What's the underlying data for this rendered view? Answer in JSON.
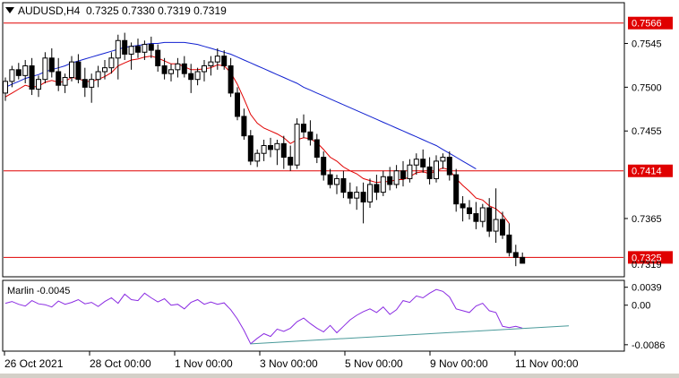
{
  "header": {
    "symbol_timeframe": "AUDUSD,H4",
    "ohlc": "0.7325 0.7330 0.7319 0.7319"
  },
  "colors": {
    "background": "#ffffff",
    "frame": "#000000",
    "bull_candle": "#ffffff",
    "bear_candle": "#000000",
    "ma_fast": "#e00000",
    "ma_slow": "#1020d0",
    "level_line": "#e00000",
    "level_label_bg": "#e00000",
    "oscillator": "#8a2be2",
    "trendline": "#4a9a9a"
  },
  "chart_data": [
    {
      "type": "candlestick",
      "title": "AUDUSD,H4",
      "y_ticks": [
        "0.7545",
        "0.7500",
        "0.7455",
        "0.7365"
      ],
      "ylim": [
        0.7306,
        0.7586
      ],
      "x_ticks": [
        "26 Oct 2021",
        "28 Oct 00:00",
        "1 Nov 00:00",
        "3 Nov 00:00",
        "5 Nov 00:00",
        "9 Nov 00:00",
        "11 Nov 00:00"
      ],
      "levels": [
        {
          "value": 0.7566,
          "label": "0.7566"
        },
        {
          "value": 0.7414,
          "label": "0.7414"
        },
        {
          "value": 0.7325,
          "label": "0.7325"
        }
      ],
      "current_price_label": "0.7319",
      "candles": [
        [
          0.7494,
          0.751,
          0.7486,
          0.7506
        ],
        [
          0.7506,
          0.7522,
          0.75,
          0.7518
        ],
        [
          0.7518,
          0.7525,
          0.7508,
          0.7512
        ],
        [
          0.7512,
          0.7528,
          0.7504,
          0.7522
        ],
        [
          0.7522,
          0.753,
          0.7492,
          0.7498
        ],
        [
          0.7498,
          0.7512,
          0.749,
          0.7508
        ],
        [
          0.7508,
          0.7536,
          0.7504,
          0.753
        ],
        [
          0.753,
          0.754,
          0.751,
          0.7516
        ],
        [
          0.7516,
          0.753,
          0.7496,
          0.7502
        ],
        [
          0.7502,
          0.7514,
          0.7494,
          0.751
        ],
        [
          0.751,
          0.7532,
          0.7506,
          0.7526
        ],
        [
          0.7526,
          0.7534,
          0.7504,
          0.7508
        ],
        [
          0.7508,
          0.752,
          0.749,
          0.75
        ],
        [
          0.75,
          0.7514,
          0.7484,
          0.7508
        ],
        [
          0.7508,
          0.7522,
          0.75,
          0.7516
        ],
        [
          0.7516,
          0.7528,
          0.7508,
          0.752
        ],
        [
          0.752,
          0.7536,
          0.7514,
          0.753
        ],
        [
          0.753,
          0.7554,
          0.7508,
          0.7548
        ],
        [
          0.7548,
          0.7556,
          0.7528,
          0.7534
        ],
        [
          0.7534,
          0.7546,
          0.7518,
          0.7542
        ],
        [
          0.7542,
          0.755,
          0.753,
          0.7536
        ],
        [
          0.7536,
          0.7548,
          0.7528,
          0.7544
        ],
        [
          0.7544,
          0.7552,
          0.753,
          0.7538
        ],
        [
          0.7538,
          0.7544,
          0.7516,
          0.7522
        ],
        [
          0.7522,
          0.753,
          0.7508,
          0.7514
        ],
        [
          0.7514,
          0.7524,
          0.7506,
          0.7518
        ],
        [
          0.7518,
          0.753,
          0.751,
          0.7524
        ],
        [
          0.7524,
          0.7532,
          0.751,
          0.7514
        ],
        [
          0.7514,
          0.7524,
          0.7494,
          0.7508
        ],
        [
          0.7508,
          0.752,
          0.7502,
          0.7516
        ],
        [
          0.7516,
          0.7528,
          0.7506,
          0.7522
        ],
        [
          0.7522,
          0.7532,
          0.7512,
          0.7526
        ],
        [
          0.7526,
          0.754,
          0.7518,
          0.7532
        ],
        [
          0.7532,
          0.7538,
          0.7518,
          0.7522
        ],
        [
          0.7522,
          0.753,
          0.749,
          0.7494
        ],
        [
          0.7494,
          0.75,
          0.7466,
          0.747
        ],
        [
          0.747,
          0.7478,
          0.7446,
          0.745
        ],
        [
          0.745,
          0.7456,
          0.742,
          0.7424
        ],
        [
          0.7424,
          0.7436,
          0.7418,
          0.7432
        ],
        [
          0.7432,
          0.7446,
          0.7424,
          0.744
        ],
        [
          0.744,
          0.7448,
          0.7428,
          0.7436
        ],
        [
          0.7436,
          0.7446,
          0.742,
          0.7442
        ],
        [
          0.7442,
          0.745,
          0.7416,
          0.7428
        ],
        [
          0.7428,
          0.744,
          0.7414,
          0.742
        ],
        [
          0.742,
          0.7468,
          0.7416,
          0.7462
        ],
        [
          0.7462,
          0.7472,
          0.7448,
          0.7454
        ],
        [
          0.7454,
          0.7466,
          0.744,
          0.7446
        ],
        [
          0.7446,
          0.7452,
          0.7422,
          0.7428
        ],
        [
          0.7428,
          0.7434,
          0.7404,
          0.741
        ],
        [
          0.741,
          0.7416,
          0.7396,
          0.74
        ],
        [
          0.74,
          0.741,
          0.739,
          0.7406
        ],
        [
          0.7406,
          0.7414,
          0.7386,
          0.7392
        ],
        [
          0.7392,
          0.7402,
          0.738,
          0.7386
        ],
        [
          0.7386,
          0.7398,
          0.7374,
          0.7392
        ],
        [
          0.7392,
          0.7402,
          0.736,
          0.7382
        ],
        [
          0.7382,
          0.7406,
          0.7376,
          0.74
        ],
        [
          0.74,
          0.741,
          0.7384,
          0.7392
        ],
        [
          0.7392,
          0.7414,
          0.7388,
          0.7408
        ],
        [
          0.7408,
          0.7418,
          0.7394,
          0.74
        ],
        [
          0.74,
          0.742,
          0.7396,
          0.7414
        ],
        [
          0.7414,
          0.7424,
          0.7398,
          0.7406
        ],
        [
          0.7406,
          0.7426,
          0.7402,
          0.742
        ],
        [
          0.742,
          0.7432,
          0.741,
          0.7426
        ],
        [
          0.7426,
          0.7436,
          0.7412,
          0.7418
        ],
        [
          0.7418,
          0.7428,
          0.74,
          0.7406
        ],
        [
          0.7406,
          0.743,
          0.7402,
          0.7424
        ],
        [
          0.7424,
          0.7432,
          0.7416,
          0.7428
        ],
        [
          0.7428,
          0.7434,
          0.7404,
          0.741
        ],
        [
          0.741,
          0.7416,
          0.7372,
          0.738
        ],
        [
          0.738,
          0.7388,
          0.7362,
          0.7376
        ],
        [
          0.7376,
          0.7384,
          0.7364,
          0.737
        ],
        [
          0.737,
          0.7382,
          0.7354,
          0.7362
        ],
        [
          0.7362,
          0.738,
          0.7356,
          0.7376
        ],
        [
          0.7376,
          0.7386,
          0.7346,
          0.7352
        ],
        [
          0.7352,
          0.7396,
          0.734,
          0.7364
        ],
        [
          0.7364,
          0.7372,
          0.7344,
          0.7348
        ],
        [
          0.7348,
          0.736,
          0.7326,
          0.733
        ],
        [
          0.733,
          0.7338,
          0.7316,
          0.7325
        ],
        [
          0.7325,
          0.733,
          0.7319,
          0.7319
        ]
      ],
      "series": [
        {
          "values": [
            0.749,
            0.7494,
            0.7498,
            0.7502,
            0.75,
            0.7501,
            0.7505,
            0.7507,
            0.7505,
            0.7506,
            0.751,
            0.7509,
            0.7506,
            0.7506,
            0.7508,
            0.7511,
            0.7515,
            0.7522,
            0.7525,
            0.7528,
            0.7529,
            0.7531,
            0.7532,
            0.753,
            0.7527,
            0.7524,
            0.7524,
            0.7521,
            0.7518,
            0.7518,
            0.7519,
            0.752,
            0.7523,
            0.7522,
            0.7515,
            0.7503,
            0.7488,
            0.7472,
            0.7463,
            0.7458,
            0.7455,
            0.7452,
            0.7448,
            0.7442,
            0.7446,
            0.7448,
            0.7447,
            0.7443,
            0.7436,
            0.7428,
            0.7424,
            0.7418,
            0.7414,
            0.7411,
            0.7406,
            0.7404,
            0.7402,
            0.7403,
            0.7403,
            0.7405,
            0.7405,
            0.7408,
            0.7412,
            0.7413,
            0.7411,
            0.7414,
            0.7417,
            0.7415,
            0.7406,
            0.7399,
            0.7393,
            0.7386,
            0.7384,
            0.7378,
            0.7375,
            0.7369,
            0.736
          ]
        },
        {
          "values": [
            0.75,
            0.7503,
            0.7506,
            0.7509,
            0.7511,
            0.7513,
            0.7516,
            0.7518,
            0.752,
            0.7522,
            0.7525,
            0.7527,
            0.7529,
            0.7531,
            0.7533,
            0.7535,
            0.7537,
            0.7539,
            0.7541,
            0.7542,
            0.7543,
            0.7544,
            0.7545,
            0.7545,
            0.7546,
            0.7546,
            0.7546,
            0.7546,
            0.7545,
            0.7544,
            0.7542,
            0.754,
            0.7538,
            0.7536,
            0.7534,
            0.7531,
            0.7528,
            0.7525,
            0.7522,
            0.7519,
            0.7516,
            0.7513,
            0.751,
            0.7507,
            0.7504,
            0.75,
            0.7497,
            0.7494,
            0.7491,
            0.7488,
            0.7485,
            0.7482,
            0.7479,
            0.7476,
            0.7473,
            0.747,
            0.7467,
            0.7464,
            0.7461,
            0.7458,
            0.7455,
            0.7452,
            0.7449,
            0.7446,
            0.7443,
            0.744,
            0.7436,
            0.7432,
            0.7428,
            0.7424,
            0.742,
            0.7416
          ]
        }
      ]
    },
    {
      "type": "line",
      "title": "Marlin -0.0045",
      "y_ticks": [
        "0.0039",
        "0.00",
        "-0.0086"
      ],
      "ylim": [
        -0.0098,
        0.0052
      ],
      "series": [
        {
          "values": [
            0.0004,
            0.0008,
            0.0002,
            -0.0002,
            0.001,
            0.0003,
            0.0001,
            -0.0004,
            0.0009,
            0.0002,
            0.0006,
            0.0012,
            0.0003,
            0.0006,
            -0.0003,
            0.0008,
            0.0016,
            0.0004,
            0.0024,
            0.0012,
            0.001,
            0.0026,
            0.0016,
            0.0007,
            0.0014,
            0.0,
            0.0002,
            -0.0008,
            0.0006,
            0.0012,
            0.0002,
            0.0007,
            0.0002,
            0.0005,
            -0.001,
            -0.003,
            -0.0055,
            -0.0084,
            -0.0072,
            -0.0062,
            -0.0068,
            -0.0052,
            -0.0057,
            -0.005,
            -0.0036,
            -0.0028,
            -0.004,
            -0.005,
            -0.0058,
            -0.0044,
            -0.006,
            -0.0046,
            -0.0032,
            -0.0022,
            -0.0014,
            -0.0008,
            -0.0016,
            -0.0004,
            -0.002,
            -0.001,
            0.001,
            0.0006,
            0.002,
            0.0016,
            0.0026,
            0.0034,
            0.003,
            0.0018,
            -0.0008,
            -0.0012,
            -0.0016,
            -0.0002,
            0.0004,
            -0.0012,
            -0.0016,
            -0.0046,
            -0.0049,
            -0.0046,
            -0.005
          ]
        },
        {
          "values": [
            -0.0084,
            -0.0045
          ]
        }
      ]
    }
  ]
}
